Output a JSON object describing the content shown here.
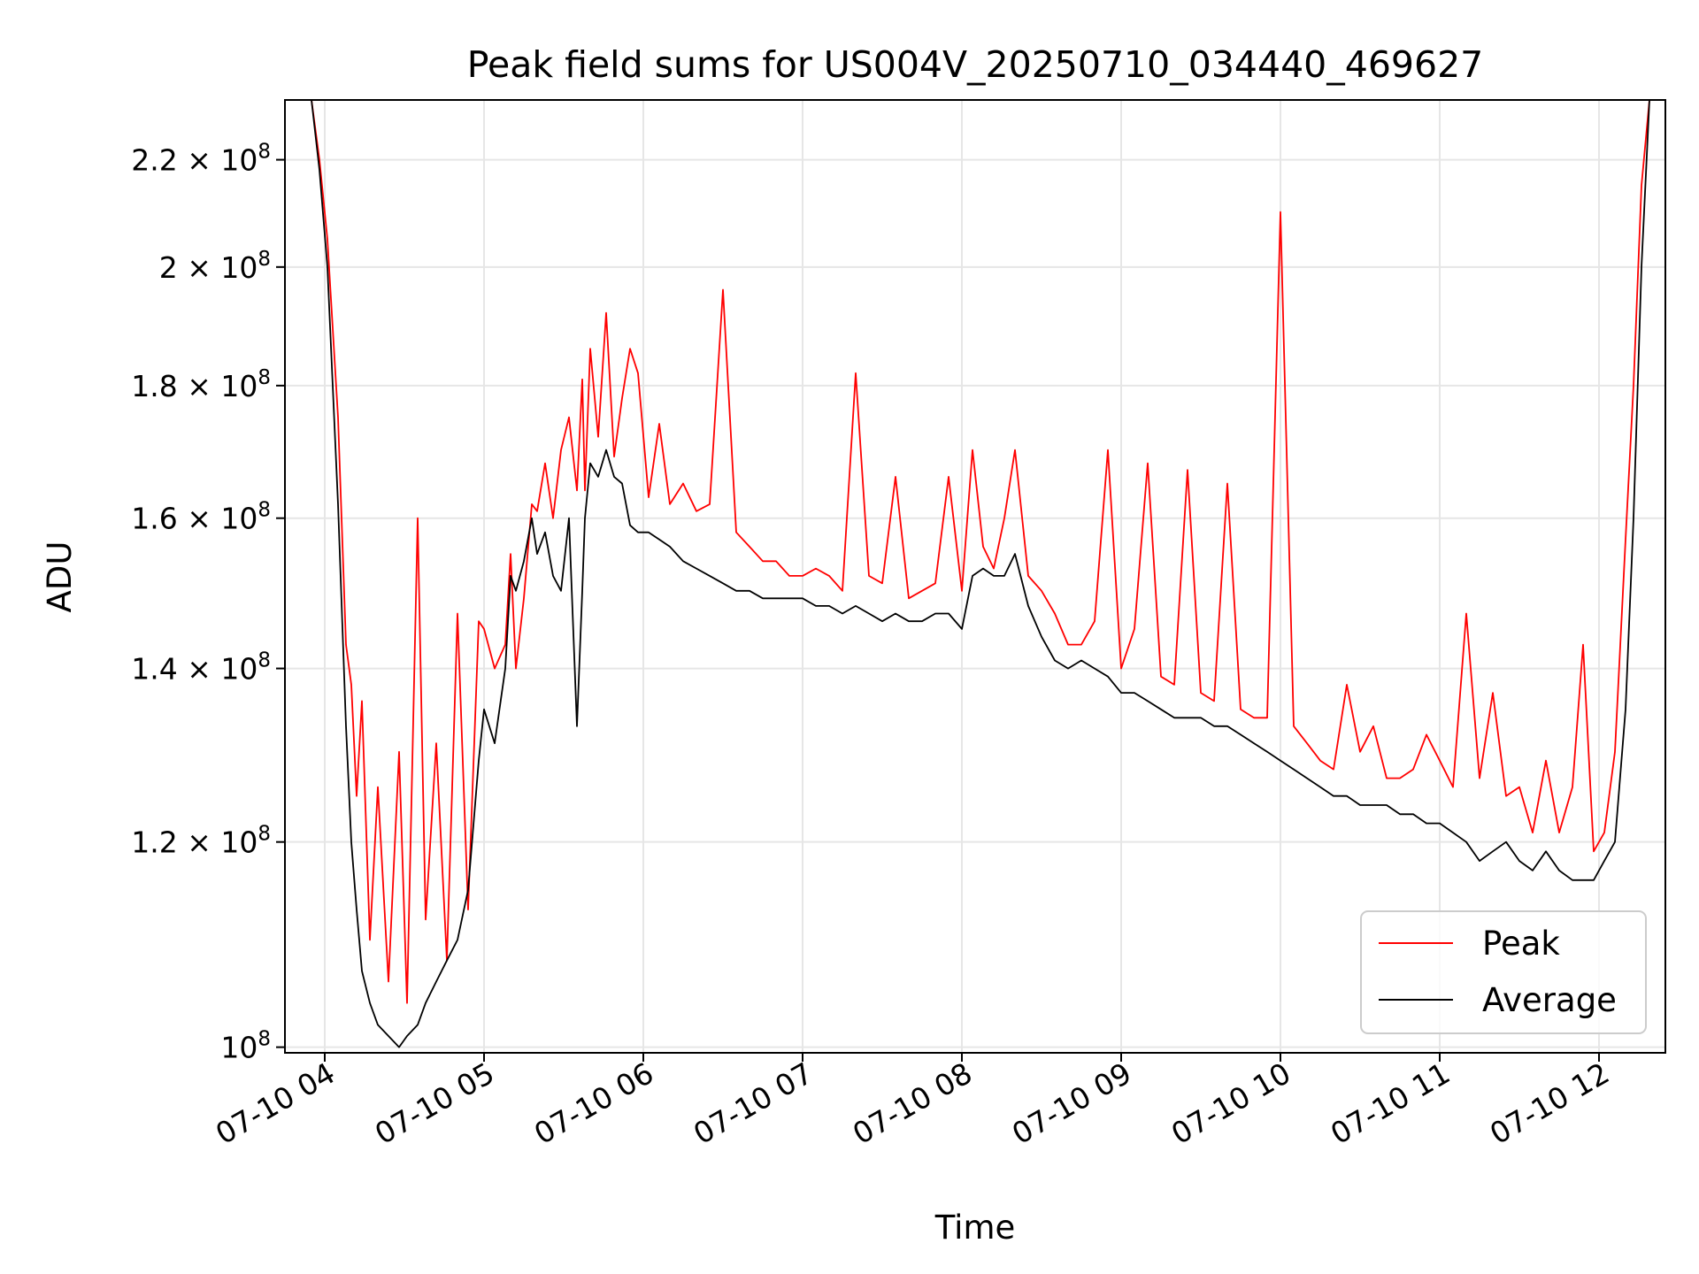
{
  "chart_data": {
    "type": "line",
    "title": "Peak field sums for US004V_20250710_034440_469627",
    "xlabel": "Time",
    "ylabel": "ADU",
    "xscale": "time",
    "yscale": "log",
    "xlim": [
      "2025-07-10 03:45",
      "2025-07-10 12:25"
    ],
    "ylim": [
      99500000,
      232000000
    ],
    "grid": true,
    "legend": "lower right",
    "x_ticks": [
      {
        "t": "2025-07-10 04:00",
        "label": "07-10 04"
      },
      {
        "t": "2025-07-10 05:00",
        "label": "07-10 05"
      },
      {
        "t": "2025-07-10 06:00",
        "label": "07-10 06"
      },
      {
        "t": "2025-07-10 07:00",
        "label": "07-10 07"
      },
      {
        "t": "2025-07-10 08:00",
        "label": "07-10 08"
      },
      {
        "t": "2025-07-10 09:00",
        "label": "07-10 09"
      },
      {
        "t": "2025-07-10 10:00",
        "label": "07-10 10"
      },
      {
        "t": "2025-07-10 11:00",
        "label": "07-10 11"
      },
      {
        "t": "2025-07-10 12:00",
        "label": "07-10 12"
      }
    ],
    "y_ticks": [
      {
        "v": 100000000,
        "mant": "",
        "exp": "8"
      },
      {
        "v": 120000000,
        "mant": "1.2",
        "exp": "8"
      },
      {
        "v": 140000000,
        "mant": "1.4",
        "exp": "8"
      },
      {
        "v": 160000000,
        "mant": "1.6",
        "exp": "8"
      },
      {
        "v": 180000000,
        "mant": "1.8",
        "exp": "8"
      },
      {
        "v": 200000000,
        "mant": "2",
        "exp": "8"
      },
      {
        "v": 220000000,
        "mant": "2.2",
        "exp": "8"
      }
    ],
    "series": [
      {
        "name": "Peak",
        "color": "#ff0000",
        "x": [
          "2025-07-10 03:55",
          "2025-07-10 03:58",
          "2025-07-10 04:01",
          "2025-07-10 04:05",
          "2025-07-10 04:08",
          "2025-07-10 04:10",
          "2025-07-10 04:12",
          "2025-07-10 04:14",
          "2025-07-10 04:17",
          "2025-07-10 04:20",
          "2025-07-10 04:24",
          "2025-07-10 04:28",
          "2025-07-10 04:31",
          "2025-07-10 04:35",
          "2025-07-10 04:38",
          "2025-07-10 04:42",
          "2025-07-10 04:46",
          "2025-07-10 04:50",
          "2025-07-10 04:54",
          "2025-07-10 04:58",
          "2025-07-10 05:00",
          "2025-07-10 05:04",
          "2025-07-10 05:08",
          "2025-07-10 05:10",
          "2025-07-10 05:12",
          "2025-07-10 05:15",
          "2025-07-10 05:18",
          "2025-07-10 05:20",
          "2025-07-10 05:23",
          "2025-07-10 05:26",
          "2025-07-10 05:29",
          "2025-07-10 05:32",
          "2025-07-10 05:35",
          "2025-07-10 05:37",
          "2025-07-10 05:38",
          "2025-07-10 05:40",
          "2025-07-10 05:43",
          "2025-07-10 05:46",
          "2025-07-10 05:49",
          "2025-07-10 05:52",
          "2025-07-10 05:55",
          "2025-07-10 05:58",
          "2025-07-10 06:02",
          "2025-07-10 06:06",
          "2025-07-10 06:10",
          "2025-07-10 06:15",
          "2025-07-10 06:20",
          "2025-07-10 06:25",
          "2025-07-10 06:30",
          "2025-07-10 06:35",
          "2025-07-10 06:40",
          "2025-07-10 06:45",
          "2025-07-10 06:50",
          "2025-07-10 06:55",
          "2025-07-10 07:00",
          "2025-07-10 07:05",
          "2025-07-10 07:10",
          "2025-07-10 07:15",
          "2025-07-10 07:20",
          "2025-07-10 07:25",
          "2025-07-10 07:30",
          "2025-07-10 07:35",
          "2025-07-10 07:40",
          "2025-07-10 07:45",
          "2025-07-10 07:50",
          "2025-07-10 07:55",
          "2025-07-10 08:00",
          "2025-07-10 08:04",
          "2025-07-10 08:08",
          "2025-07-10 08:12",
          "2025-07-10 08:16",
          "2025-07-10 08:20",
          "2025-07-10 08:25",
          "2025-07-10 08:30",
          "2025-07-10 08:35",
          "2025-07-10 08:40",
          "2025-07-10 08:45",
          "2025-07-10 08:50",
          "2025-07-10 08:55",
          "2025-07-10 09:00",
          "2025-07-10 09:05",
          "2025-07-10 09:10",
          "2025-07-10 09:15",
          "2025-07-10 09:20",
          "2025-07-10 09:25",
          "2025-07-10 09:30",
          "2025-07-10 09:35",
          "2025-07-10 09:40",
          "2025-07-10 09:45",
          "2025-07-10 09:50",
          "2025-07-10 09:55",
          "2025-07-10 10:00",
          "2025-07-10 10:05",
          "2025-07-10 10:10",
          "2025-07-10 10:15",
          "2025-07-10 10:20",
          "2025-07-10 10:25",
          "2025-07-10 10:30",
          "2025-07-10 10:35",
          "2025-07-10 10:40",
          "2025-07-10 10:45",
          "2025-07-10 10:50",
          "2025-07-10 10:55",
          "2025-07-10 11:00",
          "2025-07-10 11:05",
          "2025-07-10 11:10",
          "2025-07-10 11:15",
          "2025-07-10 11:20",
          "2025-07-10 11:25",
          "2025-07-10 11:30",
          "2025-07-10 11:35",
          "2025-07-10 11:40",
          "2025-07-10 11:45",
          "2025-07-10 11:50",
          "2025-07-10 11:54",
          "2025-07-10 11:58",
          "2025-07-10 12:02",
          "2025-07-10 12:06",
          "2025-07-10 12:10",
          "2025-07-10 12:13",
          "2025-07-10 12:16",
          "2025-07-10 12:19"
        ],
        "y": [
          232000000,
          220000000,
          205000000,
          175000000,
          143000000,
          138000000,
          125000000,
          136000000,
          110000000,
          126000000,
          106000000,
          130000000,
          104000000,
          160000000,
          112000000,
          131000000,
          108000000,
          147000000,
          113000000,
          146000000,
          145000000,
          140000000,
          143000000,
          155000000,
          140000000,
          149000000,
          162000000,
          161000000,
          168000000,
          160000000,
          170000000,
          175000000,
          164000000,
          181000000,
          164000000,
          186000000,
          172000000,
          192000000,
          169000000,
          178000000,
          186000000,
          182000000,
          163000000,
          174000000,
          162000000,
          165000000,
          161000000,
          162000000,
          196000000,
          158000000,
          156000000,
          154000000,
          154000000,
          152000000,
          152000000,
          153000000,
          152000000,
          150000000,
          182000000,
          152000000,
          151000000,
          166000000,
          149000000,
          150000000,
          151000000,
          166000000,
          150000000,
          170000000,
          156000000,
          153000000,
          160000000,
          170000000,
          152000000,
          150000000,
          147000000,
          143000000,
          143000000,
          146000000,
          170000000,
          140000000,
          145000000,
          168000000,
          139000000,
          138000000,
          167000000,
          137000000,
          136000000,
          165000000,
          135000000,
          134000000,
          134000000,
          210000000,
          133000000,
          131000000,
          129000000,
          128000000,
          138000000,
          130000000,
          133000000,
          127000000,
          127000000,
          128000000,
          132000000,
          129000000,
          126000000,
          147000000,
          127000000,
          137000000,
          125000000,
          126000000,
          121000000,
          129000000,
          121000000,
          126000000,
          143000000,
          119000000,
          121000000,
          130000000,
          157000000,
          180000000,
          215000000,
          232000000
        ]
      },
      {
        "name": "Average",
        "color": "#000000",
        "x": [
          "2025-07-10 03:55",
          "2025-07-10 03:58",
          "2025-07-10 04:01",
          "2025-07-10 04:05",
          "2025-07-10 04:08",
          "2025-07-10 04:10",
          "2025-07-10 04:12",
          "2025-07-10 04:14",
          "2025-07-10 04:17",
          "2025-07-10 04:20",
          "2025-07-10 04:24",
          "2025-07-10 04:28",
          "2025-07-10 04:31",
          "2025-07-10 04:35",
          "2025-07-10 04:38",
          "2025-07-10 04:42",
          "2025-07-10 04:46",
          "2025-07-10 04:50",
          "2025-07-10 04:54",
          "2025-07-10 04:58",
          "2025-07-10 05:00",
          "2025-07-10 05:04",
          "2025-07-10 05:08",
          "2025-07-10 05:10",
          "2025-07-10 05:12",
          "2025-07-10 05:15",
          "2025-07-10 05:18",
          "2025-07-10 05:20",
          "2025-07-10 05:23",
          "2025-07-10 05:26",
          "2025-07-10 05:29",
          "2025-07-10 05:32",
          "2025-07-10 05:35",
          "2025-07-10 05:37",
          "2025-07-10 05:38",
          "2025-07-10 05:40",
          "2025-07-10 05:43",
          "2025-07-10 05:46",
          "2025-07-10 05:49",
          "2025-07-10 05:52",
          "2025-07-10 05:55",
          "2025-07-10 05:58",
          "2025-07-10 06:02",
          "2025-07-10 06:06",
          "2025-07-10 06:10",
          "2025-07-10 06:15",
          "2025-07-10 06:20",
          "2025-07-10 06:25",
          "2025-07-10 06:30",
          "2025-07-10 06:35",
          "2025-07-10 06:40",
          "2025-07-10 06:45",
          "2025-07-10 06:50",
          "2025-07-10 06:55",
          "2025-07-10 07:00",
          "2025-07-10 07:05",
          "2025-07-10 07:10",
          "2025-07-10 07:15",
          "2025-07-10 07:20",
          "2025-07-10 07:25",
          "2025-07-10 07:30",
          "2025-07-10 07:35",
          "2025-07-10 07:40",
          "2025-07-10 07:45",
          "2025-07-10 07:50",
          "2025-07-10 07:55",
          "2025-07-10 08:00",
          "2025-07-10 08:04",
          "2025-07-10 08:08",
          "2025-07-10 08:12",
          "2025-07-10 08:16",
          "2025-07-10 08:20",
          "2025-07-10 08:25",
          "2025-07-10 08:30",
          "2025-07-10 08:35",
          "2025-07-10 08:40",
          "2025-07-10 08:45",
          "2025-07-10 08:50",
          "2025-07-10 08:55",
          "2025-07-10 09:00",
          "2025-07-10 09:05",
          "2025-07-10 09:10",
          "2025-07-10 09:15",
          "2025-07-10 09:20",
          "2025-07-10 09:25",
          "2025-07-10 09:30",
          "2025-07-10 09:35",
          "2025-07-10 09:40",
          "2025-07-10 09:45",
          "2025-07-10 09:50",
          "2025-07-10 09:55",
          "2025-07-10 10:00",
          "2025-07-10 10:05",
          "2025-07-10 10:10",
          "2025-07-10 10:15",
          "2025-07-10 10:20",
          "2025-07-10 10:25",
          "2025-07-10 10:30",
          "2025-07-10 10:35",
          "2025-07-10 10:40",
          "2025-07-10 10:45",
          "2025-07-10 10:50",
          "2025-07-10 10:55",
          "2025-07-10 11:00",
          "2025-07-10 11:05",
          "2025-07-10 11:10",
          "2025-07-10 11:15",
          "2025-07-10 11:20",
          "2025-07-10 11:25",
          "2025-07-10 11:30",
          "2025-07-10 11:35",
          "2025-07-10 11:40",
          "2025-07-10 11:45",
          "2025-07-10 11:50",
          "2025-07-10 11:54",
          "2025-07-10 11:58",
          "2025-07-10 12:02",
          "2025-07-10 12:06",
          "2025-07-10 12:10",
          "2025-07-10 12:13",
          "2025-07-10 12:16",
          "2025-07-10 12:19"
        ],
        "y": [
          232000000,
          218000000,
          200000000,
          162000000,
          133000000,
          120000000,
          113000000,
          107000000,
          104000000,
          102000000,
          101000000,
          100000000,
          101000000,
          102000000,
          104000000,
          106000000,
          108000000,
          110000000,
          115000000,
          129000000,
          135000000,
          131000000,
          140000000,
          152000000,
          150000000,
          154000000,
          160000000,
          155000000,
          158000000,
          152000000,
          150000000,
          160000000,
          133000000,
          150000000,
          160000000,
          168000000,
          166000000,
          170000000,
          166000000,
          165000000,
          159000000,
          158000000,
          158000000,
          157000000,
          156000000,
          154000000,
          153000000,
          152000000,
          151000000,
          150000000,
          150000000,
          149000000,
          149000000,
          149000000,
          149000000,
          148000000,
          148000000,
          147000000,
          148000000,
          147000000,
          146000000,
          147000000,
          146000000,
          146000000,
          147000000,
          147000000,
          145000000,
          152000000,
          153000000,
          152000000,
          152000000,
          155000000,
          148000000,
          144000000,
          141000000,
          140000000,
          141000000,
          140000000,
          139000000,
          137000000,
          137000000,
          136000000,
          135000000,
          134000000,
          134000000,
          134000000,
          133000000,
          133000000,
          132000000,
          131000000,
          130000000,
          129000000,
          128000000,
          127000000,
          126000000,
          125000000,
          125000000,
          124000000,
          124000000,
          124000000,
          123000000,
          123000000,
          122000000,
          122000000,
          121000000,
          120000000,
          118000000,
          119000000,
          120000000,
          118000000,
          117000000,
          119000000,
          117000000,
          116000000,
          116000000,
          116000000,
          118000000,
          120000000,
          135000000,
          160000000,
          200000000,
          232000000
        ]
      }
    ]
  }
}
